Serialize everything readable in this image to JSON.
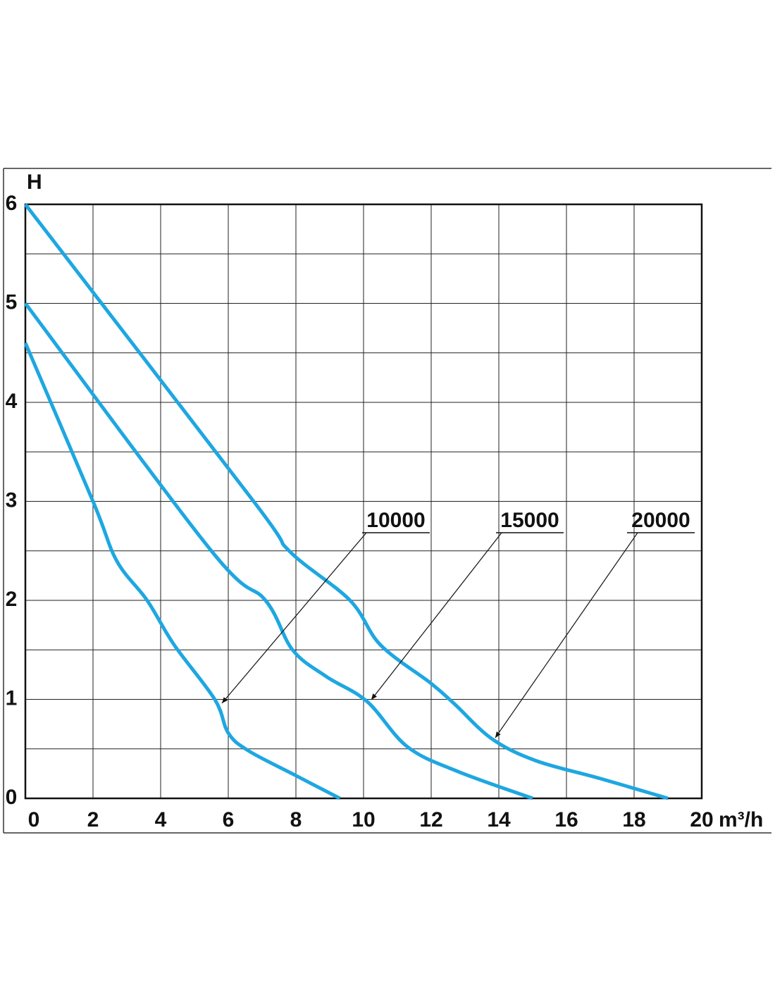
{
  "chart_data": {
    "type": "line",
    "y_label": "H",
    "x_label": "m³/h",
    "xlim": [
      0,
      20
    ],
    "xticks": [
      0,
      2,
      4,
      6,
      8,
      10,
      12,
      14,
      16,
      18,
      20
    ],
    "ylim": [
      0,
      6
    ],
    "yticks": [
      0,
      1,
      2,
      3,
      4,
      5,
      6
    ],
    "y_minor_grid": [
      0.5,
      1.5,
      2.5,
      3.5,
      4.5,
      5.5
    ],
    "grid": true,
    "series": [
      {
        "name": "10000",
        "color": "#1ea7e1",
        "x": [
          0,
          2,
          2.7,
          3.6,
          4.4,
          5.6,
          6,
          6.6,
          8,
          9.3
        ],
        "values": [
          4.6,
          3,
          2.4,
          2,
          1.55,
          1,
          0.66,
          0.48,
          0.23,
          0
        ]
      },
      {
        "name": "15000",
        "color": "#1ea7e1",
        "x": [
          0,
          5.5,
          7.1,
          7.9,
          8.9,
          10.1,
          11.3,
          12.8,
          15
        ],
        "values": [
          5,
          2.5,
          2,
          1.5,
          1.23,
          0.98,
          0.52,
          0.27,
          0
        ]
      },
      {
        "name": "20000",
        "color": "#1ea7e1",
        "x": [
          0,
          6.75,
          7.8,
          9.6,
          10.5,
          12,
          12.7,
          13.8,
          15.1,
          17,
          19
        ],
        "values": [
          6,
          3,
          2.5,
          2,
          1.55,
          1.16,
          0.95,
          0.6,
          0.38,
          0.2,
          0
        ]
      }
    ]
  }
}
